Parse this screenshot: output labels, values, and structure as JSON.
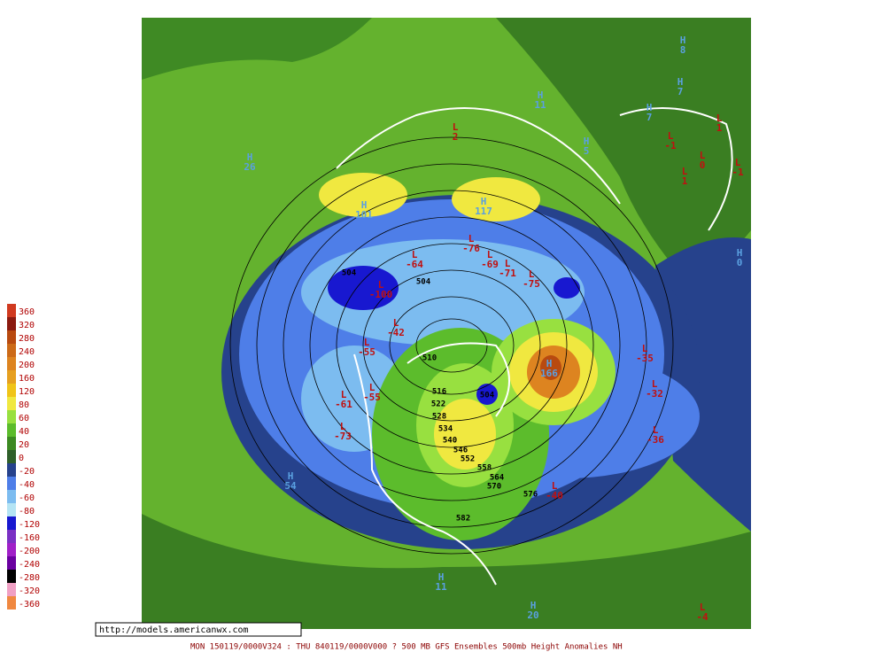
{
  "legend": [
    {
      "value": 360,
      "color": "#d03a20"
    },
    {
      "value": 320,
      "color": "#8b1a10"
    },
    {
      "value": 280,
      "color": "#b84a10"
    },
    {
      "value": 240,
      "color": "#cc6a18"
    },
    {
      "value": 200,
      "color": "#dd8420"
    },
    {
      "value": 160,
      "color": "#e6a020"
    },
    {
      "value": 120,
      "color": "#f0c418"
    },
    {
      "value": 80,
      "color": "#f0e840"
    },
    {
      "value": 60,
      "color": "#98e040"
    },
    {
      "value": 40,
      "color": "#5cbc2c"
    },
    {
      "value": 20,
      "color": "#3c8a22"
    },
    {
      "value": 0,
      "color": "#2f5f2a"
    },
    {
      "value": -20,
      "color": "#26428c"
    },
    {
      "value": -40,
      "color": "#4e7ee8"
    },
    {
      "value": -60,
      "color": "#7cbcf0"
    },
    {
      "value": -80,
      "color": "#b4e4f4"
    },
    {
      "value": -120,
      "color": "#1818d0"
    },
    {
      "value": -160,
      "color": "#7a30c4"
    },
    {
      "value": -200,
      "color": "#a020c8"
    },
    {
      "value": -240,
      "color": "#6a00a0"
    },
    {
      "value": -280,
      "color": "#000000"
    },
    {
      "value": -320,
      "color": "#f0a0c4"
    },
    {
      "value": -360,
      "color": "#f08840"
    }
  ],
  "centers": [
    {
      "type": "H",
      "value": 8
    },
    {
      "type": "H",
      "value": 7
    },
    {
      "type": "H",
      "value": 11
    },
    {
      "type": "H",
      "value": 7
    },
    {
      "type": "L",
      "value": 1
    },
    {
      "type": "L",
      "value": -1
    },
    {
      "type": "H",
      "value": 5
    },
    {
      "type": "L",
      "value": 0
    },
    {
      "type": "L",
      "value": -1
    },
    {
      "type": "L",
      "value": 1
    },
    {
      "type": "L",
      "value": 2
    },
    {
      "type": "H",
      "value": 26
    },
    {
      "type": "H",
      "value": 101
    },
    {
      "type": "H",
      "value": 117
    },
    {
      "type": "L",
      "value": -64
    },
    {
      "type": "L",
      "value": -76
    },
    {
      "type": "L",
      "value": -69
    },
    {
      "type": "L",
      "value": -71
    },
    {
      "type": "L",
      "value": -75
    },
    {
      "type": "L",
      "value": -100
    },
    {
      "type": "L",
      "value": -42
    },
    {
      "type": "L",
      "value": -55
    },
    {
      "type": "L",
      "value": -61
    },
    {
      "type": "L",
      "value": -55
    },
    {
      "type": "L",
      "value": -73
    },
    {
      "type": "H",
      "value": 166
    },
    {
      "type": "L",
      "value": -35
    },
    {
      "type": "L",
      "value": -32
    },
    {
      "type": "L",
      "value": -36
    },
    {
      "type": "L",
      "value": -40
    },
    {
      "type": "H",
      "value": 54
    },
    {
      "type": "H",
      "value": 11
    },
    {
      "type": "H",
      "value": 20
    },
    {
      "type": "L",
      "value": -4
    },
    {
      "type": "H",
      "value": 0
    }
  ],
  "contours": [
    504,
    504,
    510,
    516,
    522,
    528,
    534,
    540,
    546,
    552,
    558,
    564,
    570,
    576,
    582,
    504
  ],
  "url": "http://models.americanwx.com",
  "footer": "MON 150119/0000V324 : THU 840119/0000V000  ? 500 MB GFS Ensembles 500mb Height Anomalies NH"
}
